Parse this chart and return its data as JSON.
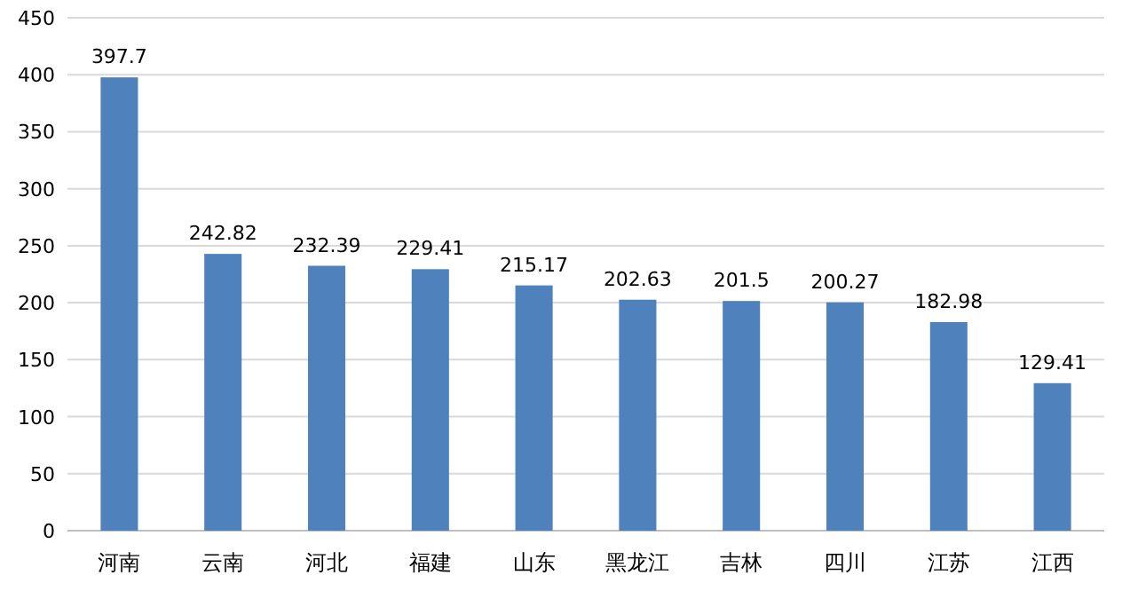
{
  "chart_data": {
    "type": "bar",
    "categories": [
      "河南",
      "云南",
      "河北",
      "福建",
      "山东",
      "黑龙江",
      "吉林",
      "四川",
      "江苏",
      "江西"
    ],
    "values": [
      397.7,
      242.82,
      232.39,
      229.41,
      215.17,
      202.63,
      201.5,
      200.27,
      182.98,
      129.41
    ],
    "color": "#4f81bd",
    "ylim": [
      0,
      450
    ],
    "yticks": [
      0,
      50,
      100,
      150,
      200,
      250,
      300,
      350,
      400,
      450
    ],
    "grid": "y",
    "data_labels": true
  }
}
